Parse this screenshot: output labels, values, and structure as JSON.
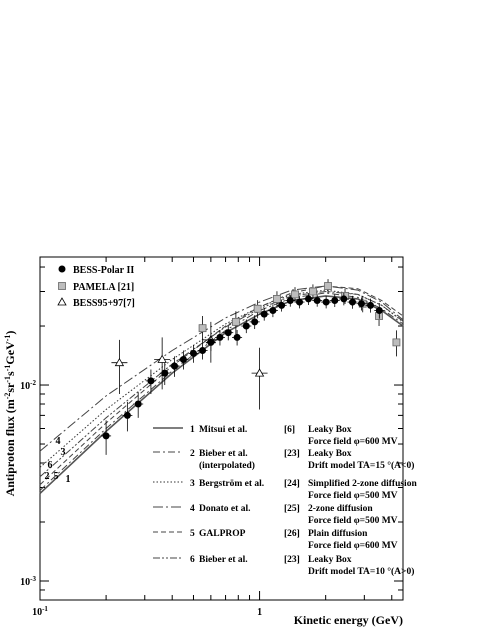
{
  "chart_data": {
    "type": "scatter",
    "xscale": "log",
    "yscale": "log",
    "xlim": [
      0.1,
      4.5
    ],
    "ylim": [
      0.0008,
      0.045
    ],
    "xlabel": "Kinetic energy (GeV)",
    "ylabel_parts": [
      "Antiproton flux (m",
      "-2",
      "sr",
      "-1",
      "s",
      "-1",
      "GeV",
      "-1",
      ")"
    ],
    "x_tick_labels": [
      {
        "value": 0.1,
        "base": "10",
        "exp": "-1"
      },
      {
        "value": 1,
        "base": "1",
        "exp": ""
      }
    ],
    "y_tick_labels": [
      {
        "value": 0.001,
        "base": "10",
        "exp": "-3"
      },
      {
        "value": 0.01,
        "base": "10",
        "exp": "-2"
      }
    ],
    "legend": [
      {
        "marker": "filled-circle",
        "label": "BESS-Polar II"
      },
      {
        "marker": "gray-square",
        "label": "PAMELA    [21]"
      },
      {
        "marker": "open-triangle",
        "label": "BESS95+97[7]"
      }
    ],
    "datasets": [
      {
        "name": "BESS-Polar II",
        "points": [
          [
            0.2,
            0.0055,
            0.0011
          ],
          [
            0.25,
            0.007,
            0.0012
          ],
          [
            0.28,
            0.008,
            0.0012
          ],
          [
            0.32,
            0.0105,
            0.0015
          ],
          [
            0.37,
            0.0115,
            0.0015
          ],
          [
            0.41,
            0.0125,
            0.0015
          ],
          [
            0.45,
            0.0135,
            0.0015
          ],
          [
            0.5,
            0.0145,
            0.0015
          ],
          [
            0.55,
            0.015,
            0.0015
          ],
          [
            0.6,
            0.0165,
            0.0016
          ],
          [
            0.66,
            0.0175,
            0.0016
          ],
          [
            0.72,
            0.0185,
            0.0016
          ],
          [
            0.79,
            0.0175,
            0.0016
          ],
          [
            0.87,
            0.02,
            0.0016
          ],
          [
            0.95,
            0.021,
            0.0017
          ],
          [
            1.05,
            0.023,
            0.0017
          ],
          [
            1.15,
            0.024,
            0.0018
          ],
          [
            1.26,
            0.0255,
            0.0018
          ],
          [
            1.38,
            0.027,
            0.0019
          ],
          [
            1.52,
            0.0265,
            0.0019
          ],
          [
            1.67,
            0.0275,
            0.0019
          ],
          [
            1.83,
            0.027,
            0.0019
          ],
          [
            2.01,
            0.0265,
            0.0019
          ],
          [
            2.2,
            0.027,
            0.002
          ],
          [
            2.42,
            0.0275,
            0.002
          ],
          [
            2.65,
            0.0265,
            0.002
          ],
          [
            2.91,
            0.026,
            0.002
          ],
          [
            3.2,
            0.0255,
            0.0021
          ],
          [
            3.51,
            0.024,
            0.0022
          ]
        ]
      },
      {
        "name": "PAMELA",
        "points": [
          [
            0.55,
            0.0195,
            0.003
          ],
          [
            0.78,
            0.021,
            0.0028
          ],
          [
            0.98,
            0.0245,
            0.0026
          ],
          [
            1.2,
            0.0275,
            0.0026
          ],
          [
            1.45,
            0.029,
            0.0026
          ],
          [
            1.75,
            0.03,
            0.0026
          ],
          [
            2.05,
            0.032,
            0.0027
          ],
          [
            2.45,
            0.0285,
            0.0026
          ],
          [
            2.95,
            0.026,
            0.0025
          ],
          [
            3.5,
            0.0225,
            0.0025
          ],
          [
            4.2,
            0.0165,
            0.0025
          ]
        ]
      },
      {
        "name": "BESS95+97",
        "points": [
          [
            0.23,
            0.013,
            0.004
          ],
          [
            0.36,
            0.0135,
            0.004
          ],
          [
            0.6,
            0.017,
            0.004
          ],
          [
            1.0,
            0.0115,
            0.004
          ]
        ]
      }
    ],
    "models": [
      {
        "num": "1",
        "name": "Mitsui et al.",
        "ref": "[6]",
        "desc": [
          "Leaky Box",
          "Force field φ=600 MV"
        ],
        "style": "solid",
        "points": [
          [
            0.1,
            0.0028
          ],
          [
            0.2,
            0.0058
          ],
          [
            0.4,
            0.0115
          ],
          [
            0.7,
            0.0185
          ],
          [
            1.0,
            0.023
          ],
          [
            1.4,
            0.027
          ],
          [
            2.0,
            0.0285
          ],
          [
            2.8,
            0.0275
          ],
          [
            3.6,
            0.024
          ],
          [
            4.5,
            0.02
          ]
        ]
      },
      {
        "num": "2",
        "name": "Bieber et al.",
        "name2": "(interpolated)",
        "ref": "[23]",
        "desc": [
          "Leaky Box",
          "Drift model TA=15 °(A<0)"
        ],
        "style": "dashdot",
        "points": [
          [
            0.1,
            0.0029
          ],
          [
            0.2,
            0.006
          ],
          [
            0.4,
            0.0118
          ],
          [
            0.7,
            0.019
          ],
          [
            1.0,
            0.024
          ],
          [
            1.4,
            0.0278
          ],
          [
            2.0,
            0.0295
          ],
          [
            2.8,
            0.028
          ],
          [
            3.6,
            0.0245
          ],
          [
            4.5,
            0.0205
          ]
        ]
      },
      {
        "num": "3",
        "name": "Bergström et al.",
        "ref": "[24]",
        "desc": [
          "Simplified 2-zone diffusion",
          "Force field φ=500 MV"
        ],
        "style": "dotted",
        "points": [
          [
            0.1,
            0.0038
          ],
          [
            0.2,
            0.0075
          ],
          [
            0.4,
            0.0135
          ],
          [
            0.7,
            0.0205
          ],
          [
            1.0,
            0.025
          ],
          [
            1.4,
            0.029
          ],
          [
            2.0,
            0.0305
          ],
          [
            2.8,
            0.029
          ],
          [
            3.6,
            0.0255
          ],
          [
            4.5,
            0.021
          ]
        ]
      },
      {
        "num": "4",
        "name": "Donato et al.",
        "ref": "[25]",
        "desc": [
          "2-zone diffusion",
          "Force field φ=500 MV"
        ],
        "style": "longdashdot",
        "points": [
          [
            0.1,
            0.0046
          ],
          [
            0.2,
            0.0088
          ],
          [
            0.4,
            0.015
          ],
          [
            0.7,
            0.022
          ],
          [
            1.0,
            0.0265
          ],
          [
            1.4,
            0.0305
          ],
          [
            2.0,
            0.032
          ],
          [
            2.8,
            0.0305
          ],
          [
            3.6,
            0.0265
          ],
          [
            4.5,
            0.0215
          ]
        ]
      },
      {
        "num": "5",
        "name": "GALPROP",
        "ref": "[26]",
        "desc": [
          "Plain diffusion",
          "Force field φ=600 MV"
        ],
        "style": "dashed",
        "points": [
          [
            0.1,
            0.0031
          ],
          [
            0.2,
            0.0064
          ],
          [
            0.4,
            0.0125
          ],
          [
            0.7,
            0.02
          ],
          [
            1.0,
            0.025
          ],
          [
            1.4,
            0.0295
          ],
          [
            2.0,
            0.032
          ],
          [
            2.8,
            0.031
          ],
          [
            3.6,
            0.027
          ],
          [
            4.5,
            0.0225
          ]
        ]
      },
      {
        "num": "6",
        "name": "Bieber et al.",
        "ref": "[23]",
        "desc": [
          "Leaky Box",
          "Drift model TA=10 °(A>0)"
        ],
        "style": "dashdotdot",
        "points": [
          [
            0.1,
            0.0034
          ],
          [
            0.2,
            0.0068
          ],
          [
            0.4,
            0.0128
          ],
          [
            0.7,
            0.0198
          ],
          [
            1.0,
            0.0245
          ],
          [
            1.4,
            0.0285
          ],
          [
            2.0,
            0.03
          ],
          [
            2.8,
            0.029
          ],
          [
            3.6,
            0.0255
          ],
          [
            4.5,
            0.0212
          ]
        ]
      }
    ],
    "end_labels": [
      "1",
      "2",
      "3",
      "4",
      "5",
      "6"
    ],
    "colors": {
      "pamela_fill": "#bdbdbd",
      "line": "#555555",
      "axis": "#000000"
    }
  }
}
